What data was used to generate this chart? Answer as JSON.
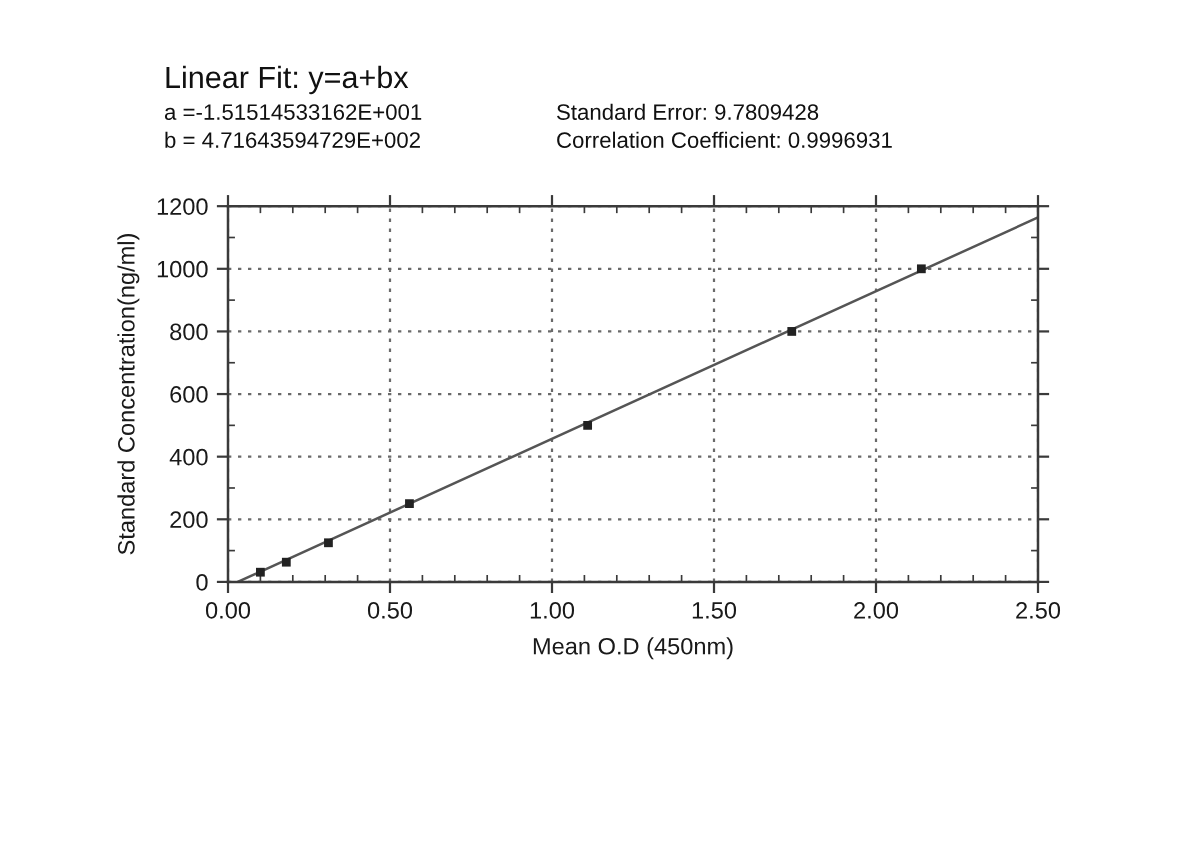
{
  "chart_data": {
    "type": "scatter",
    "title": "Linear Fit: y=a+bx",
    "xlabel": "Mean O.D (450nm)",
    "ylabel": "Standard Concentration(ng/ml)",
    "annotations": [
      "a =-1.51514533162E+001",
      "Standard Error: 9.7809428",
      "b = 4.71643594729E+002",
      "Correlation Coefficient: 0.9996931"
    ],
    "xlim": [
      0,
      2.5
    ],
    "ylim": [
      0,
      1200
    ],
    "xticks": [
      {
        "value": 0,
        "label": "0.00"
      },
      {
        "value": 0.5,
        "label": "0.50"
      },
      {
        "value": 1,
        "label": "1.00"
      },
      {
        "value": 1.5,
        "label": "1.50"
      },
      {
        "value": 2,
        "label": "2.00"
      },
      {
        "value": 2.5,
        "label": "2.50"
      }
    ],
    "yticks": [
      0,
      200,
      400,
      600,
      800,
      1000,
      1200
    ],
    "grid": true,
    "series": [
      {
        "type": "line",
        "color": "#555555",
        "marker": "none",
        "line_style": "solid",
        "x": [
          0.03,
          2.5
        ],
        "values": [
          0,
          1164
        ]
      },
      {
        "color": "#222222",
        "marker": "square",
        "x": [
          0.1,
          0.18,
          0.31,
          0.56,
          1.11,
          1.74,
          2.14
        ],
        "values": [
          31,
          63,
          125,
          250,
          500,
          800,
          1000
        ]
      }
    ]
  }
}
